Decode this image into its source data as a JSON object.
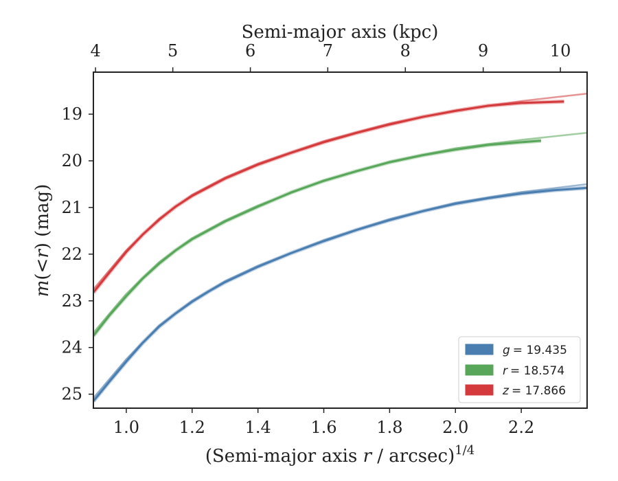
{
  "chart_data": {
    "type": "line",
    "xlabel_prefix": "(Semi-major axis ",
    "xlabel_var": "r",
    "xlabel_suffix": " / arcsec)",
    "xlabel_power": "1/4",
    "ylabel_var": "m",
    "ylabel_mid": "(<",
    "ylabel_var2": "r",
    "ylabel_suffix": ") (mag)",
    "top_xlabel": "Semi-major axis (kpc)",
    "xlim": [
      0.9,
      2.4
    ],
    "ylim": [
      25.3,
      18.1
    ],
    "y_inverted": true,
    "x_ticks": [
      "1.0",
      "1.2",
      "1.4",
      "1.6",
      "1.8",
      "2.0",
      "2.2"
    ],
    "y_ticks": [
      "19",
      "20",
      "21",
      "22",
      "23",
      "24",
      "25"
    ],
    "top_ticks": [
      "4",
      "5",
      "6",
      "7",
      "8",
      "9",
      "10"
    ],
    "top_tick_positions_x": [
      0.9065,
      1.1413,
      1.3769,
      1.6121,
      1.8478,
      2.0843,
      2.3188
    ],
    "legend_position": "lower-right",
    "series": [
      {
        "name": "g",
        "label_var": "g",
        "label_value": "= 19.435",
        "color": "#4a7eb0",
        "x": [
          0.9,
          0.95,
          1.0,
          1.05,
          1.1,
          1.15,
          1.2,
          1.25,
          1.3,
          1.4,
          1.5,
          1.6,
          1.7,
          1.8,
          1.9,
          2.0,
          2.1,
          2.2,
          2.3,
          2.4
        ],
        "y": [
          25.15,
          24.72,
          24.3,
          23.9,
          23.55,
          23.27,
          23.02,
          22.8,
          22.6,
          22.27,
          21.98,
          21.72,
          21.48,
          21.27,
          21.08,
          20.92,
          20.8,
          20.7,
          20.63,
          20.58
        ],
        "model_x": [
          0.9,
          1.0,
          1.1,
          1.2,
          1.3,
          1.4,
          1.6,
          1.8,
          2.0,
          2.2,
          2.4
        ],
        "model_y": [
          25.08,
          24.25,
          23.53,
          23.0,
          22.58,
          22.25,
          21.7,
          21.25,
          20.9,
          20.67,
          20.5
        ]
      },
      {
        "name": "r",
        "label_var": "r",
        "label_value": "= 18.574",
        "color": "#58a65a",
        "x": [
          0.9,
          0.95,
          1.0,
          1.05,
          1.1,
          1.15,
          1.2,
          1.3,
          1.4,
          1.5,
          1.6,
          1.7,
          1.8,
          1.9,
          2.0,
          2.1,
          2.2,
          2.26
        ],
        "y": [
          23.75,
          23.3,
          22.9,
          22.52,
          22.2,
          21.92,
          21.68,
          21.3,
          20.98,
          20.68,
          20.43,
          20.22,
          20.03,
          19.88,
          19.76,
          19.66,
          19.6,
          19.57
        ],
        "model_x": [
          0.9,
          1.0,
          1.1,
          1.2,
          1.3,
          1.4,
          1.6,
          1.8,
          2.0,
          2.2,
          2.4
        ],
        "model_y": [
          23.68,
          22.85,
          22.17,
          21.66,
          21.28,
          20.96,
          20.42,
          20.02,
          19.73,
          19.55,
          19.4
        ]
      },
      {
        "name": "z",
        "label_var": "z",
        "label_value": "= 17.866",
        "color": "#d43a3c",
        "x": [
          0.9,
          0.95,
          1.0,
          1.05,
          1.1,
          1.15,
          1.2,
          1.3,
          1.4,
          1.5,
          1.6,
          1.7,
          1.8,
          1.9,
          2.0,
          2.1,
          2.2,
          2.33
        ],
        "y": [
          22.82,
          22.38,
          21.95,
          21.58,
          21.26,
          20.98,
          20.75,
          20.38,
          20.08,
          19.83,
          19.6,
          19.4,
          19.22,
          19.06,
          18.93,
          18.82,
          18.76,
          18.73
        ],
        "model_x": [
          0.9,
          1.0,
          1.1,
          1.2,
          1.3,
          1.4,
          1.6,
          1.8,
          2.0,
          2.2,
          2.4
        ],
        "model_y": [
          22.75,
          21.92,
          21.24,
          20.73,
          20.36,
          20.06,
          19.58,
          19.2,
          18.92,
          18.72,
          18.56
        ]
      }
    ]
  }
}
